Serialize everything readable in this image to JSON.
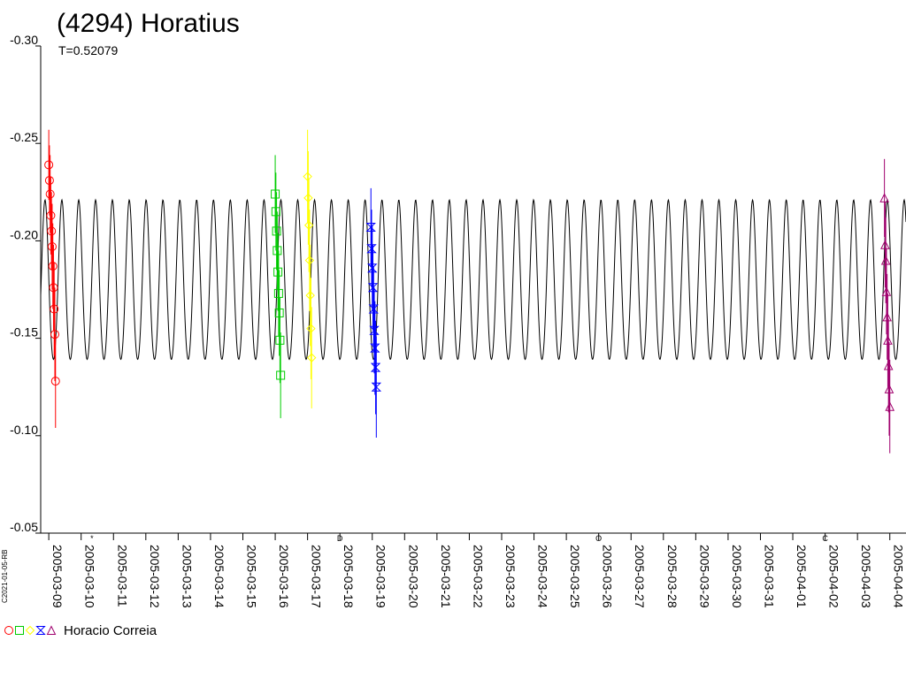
{
  "title": "(4294) Horatius",
  "period_label": "T=0.52079",
  "credit": "C2021-01-05-RB",
  "legend": {
    "observer": "Horacio Correia",
    "symbols": [
      {
        "name": "circle",
        "color": "#ff0000"
      },
      {
        "name": "square",
        "color": "#00cc00"
      },
      {
        "name": "diamond",
        "color": "#ffff00"
      },
      {
        "name": "hourglass",
        "color": "#0000ff"
      },
      {
        "name": "triangle",
        "color": "#a0006e"
      }
    ]
  },
  "chart_data": {
    "type": "scatter",
    "title": "(4294) Horatius",
    "subtitle": "T=0.52079",
    "x_ticks": [
      "2005-03-09",
      "2005-03-10",
      "2005-03-11",
      "2005-03-12",
      "2005-03-13",
      "2005-03-14",
      "2005-03-15",
      "2005-03-16",
      "2005-03-17",
      "2005-03-18",
      "2005-03-19",
      "2005-03-20",
      "2005-03-21",
      "2005-03-22",
      "2005-03-23",
      "2005-03-24",
      "2005-03-25",
      "2005-03-26",
      "2005-03-27",
      "2005-03-28",
      "2005-03-29",
      "2005-03-30",
      "2005-03-31",
      "2005-04-01",
      "2005-04-02",
      "2005-04-03",
      "2005-04-04"
    ],
    "xlim": [
      "2005-03-08T18:00",
      "2005-04-04T12:00"
    ],
    "y_ticks": [
      "-0.30",
      "-0.25",
      "-0.20",
      "-0.15",
      "-0.10",
      "-0.05"
    ],
    "ylim": [
      -0.3,
      -0.05
    ],
    "y_inverted": true,
    "model_curve": {
      "period_days": 0.52079,
      "mean": -0.177,
      "amplitude": 0.044,
      "color": "#000000"
    },
    "moon_markers": [
      {
        "x": "2005-03-10T08:00",
        "symbol": "*"
      },
      {
        "x": "2005-03-18T00:00",
        "symbol": "D"
      },
      {
        "x": "2005-03-26T00:00",
        "symbol": "O"
      },
      {
        "x": "2005-04-02T00:00",
        "symbol": "C"
      }
    ],
    "series": [
      {
        "marker": "circle",
        "color": "#ff0000",
        "x": [
          "2005-03-09T00:00",
          "2005-03-09T00:30",
          "2005-03-09T01:00",
          "2005-03-09T01:30",
          "2005-03-09T02:00",
          "2005-03-09T02:30",
          "2005-03-09T03:00",
          "2005-03-09T03:30",
          "2005-03-09T04:00",
          "2005-03-09T04:30",
          "2005-03-09T05:00"
        ],
        "y": [
          -0.239,
          -0.231,
          -0.224,
          -0.213,
          -0.205,
          -0.197,
          -0.187,
          -0.176,
          -0.165,
          -0.152,
          -0.128
        ],
        "err": [
          0.018,
          0.018,
          0.02,
          0.02,
          0.02,
          0.022,
          0.022,
          0.022,
          0.024,
          0.024,
          0.024
        ]
      },
      {
        "marker": "square",
        "color": "#00cc00",
        "x": [
          "2005-03-16T00:00",
          "2005-03-16T00:30",
          "2005-03-16T01:00",
          "2005-03-16T01:30",
          "2005-03-16T02:00",
          "2005-03-16T02:30",
          "2005-03-16T03:00",
          "2005-03-16T03:30",
          "2005-03-16T04:00"
        ],
        "y": [
          -0.224,
          -0.215,
          -0.205,
          -0.195,
          -0.184,
          -0.173,
          -0.163,
          -0.149,
          -0.131
        ],
        "err": [
          0.02,
          0.02,
          0.02,
          0.02,
          0.02,
          0.022,
          0.022,
          0.022,
          0.022
        ]
      },
      {
        "marker": "diamond",
        "color": "#ffff00",
        "x": [
          "2005-03-17T00:00",
          "2005-03-17T00:30",
          "2005-03-17T01:00",
          "2005-03-17T01:30",
          "2005-03-17T02:00",
          "2005-03-17T02:30",
          "2005-03-17T03:00"
        ],
        "y": [
          -0.233,
          -0.222,
          -0.208,
          -0.19,
          -0.172,
          -0.155,
          -0.14
        ],
        "err": [
          0.024,
          0.024,
          0.024,
          0.026,
          0.026,
          0.026,
          0.026
        ]
      },
      {
        "marker": "hourglass",
        "color": "#0000ff",
        "x": [
          "2005-03-18T23:00",
          "2005-03-18T23:30",
          "2005-03-19T00:00",
          "2005-03-19T00:30",
          "2005-03-19T01:00",
          "2005-03-19T01:30",
          "2005-03-19T02:00",
          "2005-03-19T02:30",
          "2005-03-19T03:00"
        ],
        "y": [
          -0.207,
          -0.196,
          -0.186,
          -0.176,
          -0.165,
          -0.154,
          -0.145,
          -0.135,
          -0.125
        ],
        "err": [
          0.02,
          0.02,
          0.022,
          0.022,
          0.022,
          0.022,
          0.024,
          0.024,
          0.026
        ]
      },
      {
        "marker": "triangle",
        "color": "#a0006e",
        "x": [
          "2005-04-03T20:00",
          "2005-04-03T20:30",
          "2005-04-03T21:00",
          "2005-04-03T21:30",
          "2005-04-03T22:00",
          "2005-04-03T22:30",
          "2005-04-03T23:00",
          "2005-04-03T23:30",
          "2005-04-04T00:00"
        ],
        "y": [
          -0.222,
          -0.198,
          -0.19,
          -0.174,
          -0.161,
          -0.149,
          -0.136,
          -0.124,
          -0.115
        ],
        "err": [
          0.02,
          0.022,
          0.022,
          0.022,
          0.022,
          0.024,
          0.024,
          0.024,
          0.024
        ]
      }
    ]
  }
}
